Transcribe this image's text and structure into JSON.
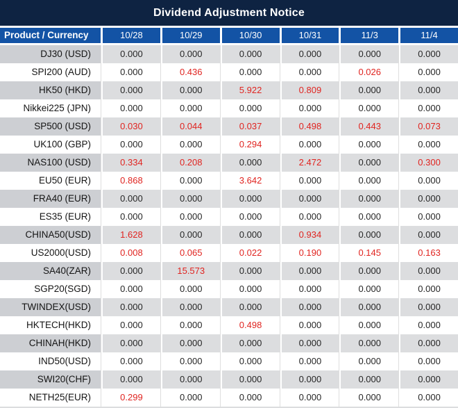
{
  "title": "Dividend Adjustment Notice",
  "table": {
    "corner_header": "Product / Currency",
    "date_columns": [
      "10/28",
      "10/29",
      "10/30",
      "10/31",
      "11/3",
      "11/4"
    ],
    "rows": [
      {
        "product": "DJ30 (USD)",
        "values": [
          "0.000",
          "0.000",
          "0.000",
          "0.000",
          "0.000",
          "0.000"
        ]
      },
      {
        "product": "SPI200 (AUD)",
        "values": [
          "0.000",
          "0.436",
          "0.000",
          "0.000",
          "0.026",
          "0.000"
        ]
      },
      {
        "product": "HK50 (HKD)",
        "values": [
          "0.000",
          "0.000",
          "5.922",
          "0.809",
          "0.000",
          "0.000"
        ]
      },
      {
        "product": "Nikkei225 (JPN)",
        "values": [
          "0.000",
          "0.000",
          "0.000",
          "0.000",
          "0.000",
          "0.000"
        ]
      },
      {
        "product": "SP500 (USD)",
        "values": [
          "0.030",
          "0.044",
          "0.037",
          "0.498",
          "0.443",
          "0.073"
        ]
      },
      {
        "product": "UK100 (GBP)",
        "values": [
          "0.000",
          "0.000",
          "0.294",
          "0.000",
          "0.000",
          "0.000"
        ]
      },
      {
        "product": "NAS100 (USD)",
        "values": [
          "0.334",
          "0.208",
          "0.000",
          "2.472",
          "0.000",
          "0.300"
        ]
      },
      {
        "product": "EU50 (EUR)",
        "values": [
          "0.868",
          "0.000",
          "3.642",
          "0.000",
          "0.000",
          "0.000"
        ]
      },
      {
        "product": "FRA40 (EUR)",
        "values": [
          "0.000",
          "0.000",
          "0.000",
          "0.000",
          "0.000",
          "0.000"
        ]
      },
      {
        "product": "ES35 (EUR)",
        "values": [
          "0.000",
          "0.000",
          "0.000",
          "0.000",
          "0.000",
          "0.000"
        ]
      },
      {
        "product": "CHINA50(USD)",
        "values": [
          "1.628",
          "0.000",
          "0.000",
          "0.934",
          "0.000",
          "0.000"
        ]
      },
      {
        "product": "US2000(USD)",
        "values": [
          "0.008",
          "0.065",
          "0.022",
          "0.190",
          "0.145",
          "0.163"
        ]
      },
      {
        "product": "SA40(ZAR)",
        "values": [
          "0.000",
          "15.573",
          "0.000",
          "0.000",
          "0.000",
          "0.000"
        ]
      },
      {
        "product": "SGP20(SGD)",
        "values": [
          "0.000",
          "0.000",
          "0.000",
          "0.000",
          "0.000",
          "0.000"
        ]
      },
      {
        "product": "TWINDEX(USD)",
        "values": [
          "0.000",
          "0.000",
          "0.000",
          "0.000",
          "0.000",
          "0.000"
        ]
      },
      {
        "product": "HKTECH(HKD)",
        "values": [
          "0.000",
          "0.000",
          "0.498",
          "0.000",
          "0.000",
          "0.000"
        ]
      },
      {
        "product": "CHINAH(HKD)",
        "values": [
          "0.000",
          "0.000",
          "0.000",
          "0.000",
          "0.000",
          "0.000"
        ]
      },
      {
        "product": "IND50(USD)",
        "values": [
          "0.000",
          "0.000",
          "0.000",
          "0.000",
          "0.000",
          "0.000"
        ]
      },
      {
        "product": "SWI20(CHF)",
        "values": [
          "0.000",
          "0.000",
          "0.000",
          "0.000",
          "0.000",
          "0.000"
        ]
      },
      {
        "product": "NETH25(EUR)",
        "values": [
          "0.299",
          "0.000",
          "0.000",
          "0.000",
          "0.000",
          "0.000"
        ]
      }
    ],
    "value_color_rule": {
      "zero": "#262626",
      "nonzero": "#e02420"
    }
  },
  "colors": {
    "navy": "#0e2342",
    "header-blue": "#1353a5",
    "row-gray": "#dcdddf",
    "row-gray-product": "#cdcfd3",
    "value-red": "#e02420",
    "value-black": "#262626",
    "product-text": "#141414",
    "sep": "#dedede"
  }
}
